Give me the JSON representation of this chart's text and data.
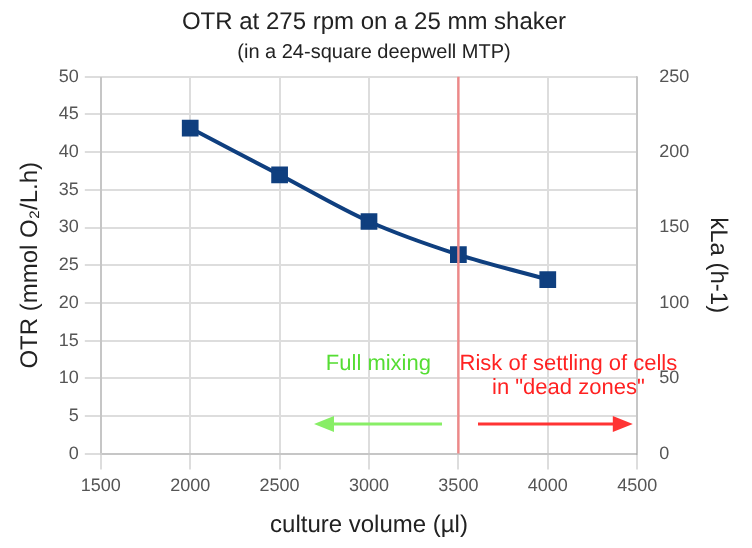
{
  "chart_data": {
    "type": "line",
    "title": "OTR at 275 rpm on a 25 mm shaker",
    "subtitle": "(in a 24-square deepwell MTP)",
    "xlabel": "culture volume (µl)",
    "ylabel": "OTR (mmol O₂/L.h)",
    "y2label": "kLa (h-1)",
    "x": [
      2000,
      2500,
      3000,
      3500,
      4000
    ],
    "series": [
      {
        "color": "#0f3f7f",
        "values": [
          43.2,
          37,
          30.8,
          26.4,
          23.1
        ]
      }
    ],
    "xlim": [
      1500,
      4500
    ],
    "xticks": [
      1500,
      2000,
      2500,
      3000,
      3500,
      4000,
      4500
    ],
    "ylim": [
      0,
      50
    ],
    "yticks": [
      0,
      5,
      10,
      15,
      20,
      25,
      30,
      35,
      40,
      45,
      50
    ],
    "y2lim": [
      0,
      250
    ],
    "y2ticks": [
      0,
      50,
      100,
      150,
      200,
      250
    ],
    "ref_lines": [
      {
        "axis": "x",
        "value": 3500,
        "color": "#ee8888"
      }
    ],
    "annotations": [
      "Full mixing",
      "Risk of settling of cells in \"dead zones\""
    ],
    "grid": true,
    "legend": false,
    "marker": "square",
    "line_style": "solid"
  }
}
